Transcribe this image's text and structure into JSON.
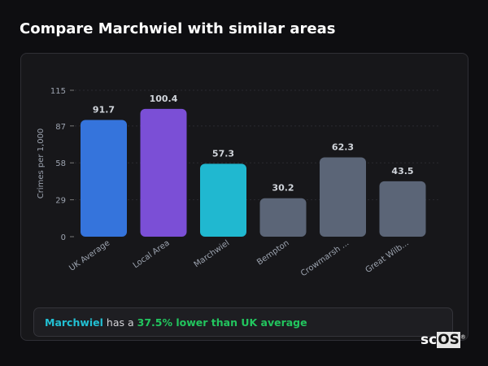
{
  "header": {
    "title": "Compare Marchwiel with similar areas"
  },
  "chart_data": {
    "type": "bar",
    "categories": [
      "UK Average",
      "Local Area",
      "Marchwiel",
      "Bempton",
      "Crowmarsh ...",
      "Great Wilb..."
    ],
    "values": [
      91.7,
      100.4,
      57.3,
      30.2,
      62.3,
      43.5
    ],
    "value_labels": [
      "91.7",
      "100.4",
      "57.3",
      "30.2",
      "62.3",
      "43.5"
    ],
    "colors": [
      "#3574dc",
      "#7b4fd6",
      "#20b8d0",
      "#5b6577",
      "#5b6577",
      "#5b6577"
    ],
    "ylabel": "Crimes per 1,000",
    "ylim": [
      0,
      115
    ],
    "yticks": [
      0,
      29,
      58,
      87,
      115
    ],
    "ytick_labels": [
      "0",
      "29",
      "58",
      "87",
      "115"
    ],
    "grid": true
  },
  "summary": {
    "place": "Marchwiel",
    "middle": " has a ",
    "comparison": "37.5% lower than UK average"
  },
  "logo": {
    "text_sc": "sc",
    "text_os": "OS",
    "mark": "®"
  }
}
